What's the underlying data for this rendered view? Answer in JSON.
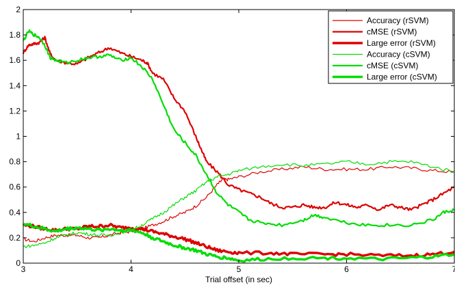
{
  "chart_data": {
    "type": "line",
    "xlabel": "Trial offset (in sec)",
    "ylabel": "",
    "xlim": [
      3,
      7
    ],
    "ylim": [
      0,
      2
    ],
    "xticks": [
      "3",
      "4",
      "5",
      "6",
      "7"
    ],
    "yticks": [
      "0",
      "0.2",
      "0.4",
      "0.6",
      "0.8",
      "1",
      "1.2",
      "1.4",
      "1.6",
      "1.8",
      "2"
    ],
    "grid": false,
    "legend_position": "top-right",
    "series": [
      {
        "name": "Accuracy (rSVM)",
        "color": "#dd0000",
        "weight": "thin",
        "points": [
          [
            3.0,
            0.19
          ],
          [
            3.1,
            0.17
          ],
          [
            3.2,
            0.2
          ],
          [
            3.3,
            0.22
          ],
          [
            3.4,
            0.22
          ],
          [
            3.5,
            0.22
          ],
          [
            3.6,
            0.2
          ],
          [
            3.7,
            0.2
          ],
          [
            3.8,
            0.22
          ],
          [
            3.9,
            0.24
          ],
          [
            4.0,
            0.25
          ],
          [
            4.1,
            0.27
          ],
          [
            4.2,
            0.3
          ],
          [
            4.3,
            0.33
          ],
          [
            4.4,
            0.37
          ],
          [
            4.5,
            0.4
          ],
          [
            4.6,
            0.45
          ],
          [
            4.7,
            0.52
          ],
          [
            4.8,
            0.62
          ],
          [
            4.85,
            0.66
          ],
          [
            4.9,
            0.66
          ],
          [
            5.0,
            0.68
          ],
          [
            5.2,
            0.72
          ],
          [
            5.4,
            0.74
          ],
          [
            5.6,
            0.76
          ],
          [
            5.8,
            0.74
          ],
          [
            6.0,
            0.74
          ],
          [
            6.2,
            0.74
          ],
          [
            6.4,
            0.76
          ],
          [
            6.6,
            0.75
          ],
          [
            6.8,
            0.73
          ],
          [
            7.0,
            0.72
          ]
        ]
      },
      {
        "name": "cMSE (rSVM)",
        "color": "#dd0000",
        "weight": "medium",
        "points": [
          [
            3.0,
            1.66
          ],
          [
            3.05,
            1.72
          ],
          [
            3.1,
            1.73
          ],
          [
            3.15,
            1.74
          ],
          [
            3.2,
            1.78
          ],
          [
            3.25,
            1.65
          ],
          [
            3.3,
            1.6
          ],
          [
            3.4,
            1.58
          ],
          [
            3.5,
            1.57
          ],
          [
            3.6,
            1.62
          ],
          [
            3.7,
            1.66
          ],
          [
            3.8,
            1.7
          ],
          [
            3.9,
            1.66
          ],
          [
            4.0,
            1.63
          ],
          [
            4.1,
            1.6
          ],
          [
            4.15,
            1.58
          ],
          [
            4.2,
            1.5
          ],
          [
            4.3,
            1.45
          ],
          [
            4.4,
            1.3
          ],
          [
            4.5,
            1.2
          ],
          [
            4.6,
            1.0
          ],
          [
            4.65,
            0.9
          ],
          [
            4.7,
            0.8
          ],
          [
            4.8,
            0.72
          ],
          [
            4.9,
            0.62
          ],
          [
            5.0,
            0.58
          ],
          [
            5.1,
            0.55
          ],
          [
            5.2,
            0.52
          ],
          [
            5.3,
            0.47
          ],
          [
            5.4,
            0.44
          ],
          [
            5.5,
            0.44
          ],
          [
            5.6,
            0.46
          ],
          [
            5.7,
            0.44
          ],
          [
            5.8,
            0.44
          ],
          [
            5.9,
            0.48
          ],
          [
            6.0,
            0.46
          ],
          [
            6.1,
            0.44
          ],
          [
            6.2,
            0.46
          ],
          [
            6.3,
            0.42
          ],
          [
            6.4,
            0.46
          ],
          [
            6.5,
            0.44
          ],
          [
            6.6,
            0.42
          ],
          [
            6.7,
            0.46
          ],
          [
            6.8,
            0.5
          ],
          [
            6.9,
            0.55
          ],
          [
            7.0,
            0.6
          ]
        ]
      },
      {
        "name": "Large error (rSVM)",
        "color": "#dd0000",
        "weight": "thick",
        "points": [
          [
            3.0,
            0.3
          ],
          [
            3.1,
            0.29
          ],
          [
            3.2,
            0.27
          ],
          [
            3.3,
            0.26
          ],
          [
            3.4,
            0.27
          ],
          [
            3.5,
            0.27
          ],
          [
            3.6,
            0.29
          ],
          [
            3.7,
            0.29
          ],
          [
            3.8,
            0.3
          ],
          [
            3.9,
            0.28
          ],
          [
            4.0,
            0.28
          ],
          [
            4.1,
            0.27
          ],
          [
            4.2,
            0.25
          ],
          [
            4.3,
            0.23
          ],
          [
            4.4,
            0.21
          ],
          [
            4.5,
            0.19
          ],
          [
            4.6,
            0.16
          ],
          [
            4.7,
            0.13
          ],
          [
            4.8,
            0.1
          ],
          [
            4.9,
            0.09
          ],
          [
            5.0,
            0.08
          ],
          [
            5.3,
            0.08
          ],
          [
            5.5,
            0.07
          ],
          [
            5.8,
            0.07
          ],
          [
            6.0,
            0.07
          ],
          [
            6.3,
            0.06
          ],
          [
            6.6,
            0.06
          ],
          [
            6.8,
            0.07
          ],
          [
            7.0,
            0.09
          ]
        ]
      },
      {
        "name": "Accuracy (cSVM)",
        "color": "#00dd00",
        "weight": "thin",
        "points": [
          [
            3.0,
            0.13
          ],
          [
            3.1,
            0.14
          ],
          [
            3.2,
            0.16
          ],
          [
            3.3,
            0.2
          ],
          [
            3.4,
            0.22
          ],
          [
            3.5,
            0.24
          ],
          [
            3.6,
            0.23
          ],
          [
            3.7,
            0.22
          ],
          [
            3.8,
            0.22
          ],
          [
            3.9,
            0.24
          ],
          [
            4.0,
            0.26
          ],
          [
            4.1,
            0.3
          ],
          [
            4.2,
            0.35
          ],
          [
            4.3,
            0.4
          ],
          [
            4.4,
            0.46
          ],
          [
            4.5,
            0.52
          ],
          [
            4.6,
            0.57
          ],
          [
            4.7,
            0.64
          ],
          [
            4.8,
            0.68
          ],
          [
            4.9,
            0.7
          ],
          [
            5.0,
            0.73
          ],
          [
            5.2,
            0.76
          ],
          [
            5.4,
            0.78
          ],
          [
            5.6,
            0.77
          ],
          [
            5.8,
            0.78
          ],
          [
            6.0,
            0.8
          ],
          [
            6.2,
            0.78
          ],
          [
            6.4,
            0.8
          ],
          [
            6.6,
            0.8
          ],
          [
            6.8,
            0.76
          ],
          [
            7.0,
            0.72
          ]
        ]
      },
      {
        "name": "cMSE (cSVM)",
        "color": "#00dd00",
        "weight": "medium",
        "points": [
          [
            3.0,
            1.75
          ],
          [
            3.05,
            1.83
          ],
          [
            3.1,
            1.8
          ],
          [
            3.15,
            1.78
          ],
          [
            3.2,
            1.72
          ],
          [
            3.25,
            1.62
          ],
          [
            3.3,
            1.6
          ],
          [
            3.4,
            1.58
          ],
          [
            3.5,
            1.6
          ],
          [
            3.6,
            1.62
          ],
          [
            3.7,
            1.63
          ],
          [
            3.8,
            1.64
          ],
          [
            3.9,
            1.6
          ],
          [
            4.0,
            1.62
          ],
          [
            4.1,
            1.55
          ],
          [
            4.2,
            1.45
          ],
          [
            4.3,
            1.25
          ],
          [
            4.4,
            1.05
          ],
          [
            4.5,
            0.95
          ],
          [
            4.6,
            0.85
          ],
          [
            4.7,
            0.7
          ],
          [
            4.8,
            0.55
          ],
          [
            4.9,
            0.46
          ],
          [
            5.0,
            0.4
          ],
          [
            5.1,
            0.34
          ],
          [
            5.2,
            0.32
          ],
          [
            5.4,
            0.3
          ],
          [
            5.6,
            0.34
          ],
          [
            5.7,
            0.38
          ],
          [
            5.8,
            0.36
          ],
          [
            6.0,
            0.32
          ],
          [
            6.2,
            0.3
          ],
          [
            6.4,
            0.3
          ],
          [
            6.6,
            0.3
          ],
          [
            6.8,
            0.34
          ],
          [
            6.9,
            0.4
          ],
          [
            7.0,
            0.42
          ]
        ]
      },
      {
        "name": "Large error (cSVM)",
        "color": "#00dd00",
        "weight": "thick",
        "points": [
          [
            3.0,
            0.31
          ],
          [
            3.1,
            0.29
          ],
          [
            3.2,
            0.27
          ],
          [
            3.3,
            0.25
          ],
          [
            3.4,
            0.27
          ],
          [
            3.5,
            0.28
          ],
          [
            3.6,
            0.27
          ],
          [
            3.7,
            0.26
          ],
          [
            3.8,
            0.27
          ],
          [
            3.9,
            0.26
          ],
          [
            4.0,
            0.26
          ],
          [
            4.1,
            0.24
          ],
          [
            4.2,
            0.2
          ],
          [
            4.3,
            0.17
          ],
          [
            4.4,
            0.14
          ],
          [
            4.5,
            0.12
          ],
          [
            4.6,
            0.1
          ],
          [
            4.7,
            0.07
          ],
          [
            4.8,
            0.05
          ],
          [
            4.9,
            0.04
          ],
          [
            5.0,
            0.02
          ],
          [
            5.2,
            0.03
          ],
          [
            5.5,
            0.04
          ],
          [
            5.8,
            0.04
          ],
          [
            6.0,
            0.04
          ],
          [
            6.3,
            0.03
          ],
          [
            6.6,
            0.04
          ],
          [
            6.8,
            0.05
          ],
          [
            7.0,
            0.07
          ]
        ]
      }
    ]
  }
}
